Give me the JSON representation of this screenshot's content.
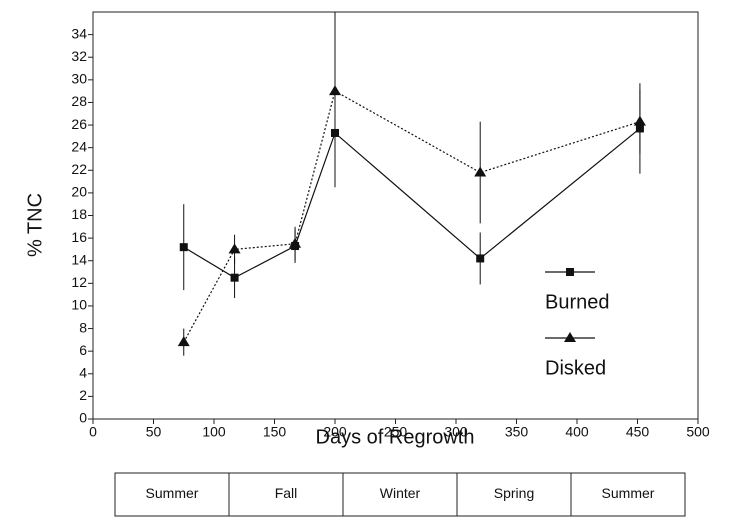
{
  "chart_data": {
    "type": "line",
    "xlabel": "Days of Regrowth",
    "ylabel": "% TNC",
    "xlim": [
      0,
      500
    ],
    "xticks": [
      0,
      50,
      100,
      150,
      200,
      250,
      300,
      350,
      400,
      450,
      500
    ],
    "ylim": [
      0,
      36
    ],
    "yticks": [
      0,
      2,
      4,
      6,
      8,
      10,
      12,
      14,
      16,
      18,
      20,
      22,
      24,
      26,
      28,
      30,
      32,
      34
    ],
    "legend": "right",
    "series": [
      {
        "name": "Burned",
        "color": "#111111",
        "marker": "square",
        "line_style": "solid",
        "x": [
          75,
          117,
          167,
          200,
          320,
          452
        ],
        "values": [
          15.2,
          12.5,
          15.3,
          25.3,
          14.2,
          25.7
        ],
        "errors": [
          3.8,
          1.8,
          1.5,
          4.8,
          2.3,
          4.0
        ]
      },
      {
        "name": "Disked",
        "color": "#111111",
        "marker": "triangle",
        "line_style": "dotted",
        "x": [
          75,
          117,
          167,
          200,
          320,
          452
        ],
        "values": [
          6.8,
          15.0,
          15.5,
          29.0,
          21.8,
          26.3
        ],
        "errors": [
          1.2,
          1.3,
          1.5,
          7.0,
          4.5,
          2.8
        ]
      }
    ]
  },
  "seasons": [
    "Summer",
    "Fall",
    "Winter",
    "Spring",
    "Summer"
  ]
}
